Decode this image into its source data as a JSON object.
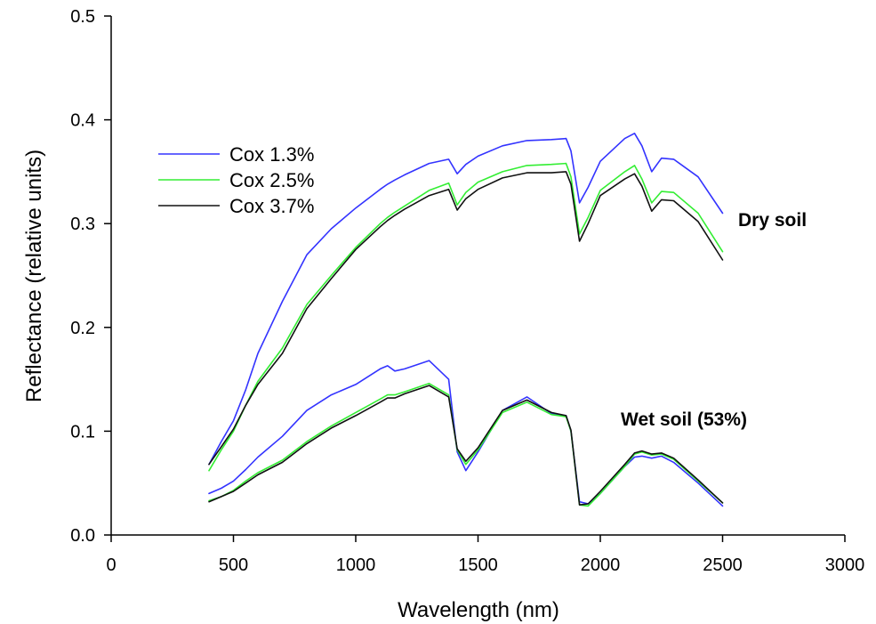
{
  "chart_data": {
    "type": "line",
    "title": "",
    "xlabel": "Wavelength (nm)",
    "ylabel": "Reflectance (relative units)",
    "xlim": [
      0,
      3000
    ],
    "ylim": [
      0,
      0.5
    ],
    "xticks": [
      0,
      500,
      1000,
      1500,
      2000,
      2500,
      3000
    ],
    "yticks": [
      0.0,
      0.1,
      0.2,
      0.3,
      0.4,
      0.5
    ],
    "xtick_labels": [
      "0",
      "500",
      "1000",
      "1500",
      "2000",
      "2500",
      "3000"
    ],
    "ytick_labels": [
      "0.0",
      "0.1",
      "0.2",
      "0.3",
      "0.4",
      "0.5"
    ],
    "grid": false,
    "legend_position": "upper-left",
    "legend": [
      "Cox 1.3%",
      "Cox 2.5%",
      "Cox 3.7%"
    ],
    "annotations": [
      "Dry soil",
      "Wet soil (53%)"
    ],
    "x": [
      400,
      450,
      500,
      550,
      600,
      700,
      800,
      900,
      1000,
      1100,
      1130,
      1160,
      1200,
      1300,
      1380,
      1415,
      1450,
      1500,
      1600,
      1700,
      1800,
      1860,
      1880,
      1915,
      1950,
      2000,
      2100,
      2140,
      2170,
      2210,
      2250,
      2300,
      2400,
      2500
    ],
    "series": [
      {
        "name": "Cox 1.3%",
        "color": "#3333ff",
        "condition": "Dry soil",
        "values": [
          0.068,
          0.09,
          0.11,
          0.14,
          0.175,
          0.225,
          0.27,
          0.295,
          0.315,
          0.333,
          0.338,
          0.342,
          0.347,
          0.358,
          0.362,
          0.348,
          0.357,
          0.365,
          0.375,
          0.38,
          0.381,
          0.382,
          0.37,
          0.32,
          0.335,
          0.36,
          0.382,
          0.387,
          0.375,
          0.35,
          0.363,
          0.362,
          0.345,
          0.31
        ]
      },
      {
        "name": "Cox 2.5%",
        "color": "#33ee33",
        "condition": "Dry soil",
        "values": [
          0.062,
          0.082,
          0.1,
          0.125,
          0.148,
          0.18,
          0.222,
          0.25,
          0.277,
          0.3,
          0.306,
          0.311,
          0.317,
          0.332,
          0.339,
          0.318,
          0.33,
          0.34,
          0.35,
          0.356,
          0.357,
          0.358,
          0.345,
          0.29,
          0.306,
          0.332,
          0.35,
          0.356,
          0.343,
          0.32,
          0.331,
          0.33,
          0.31,
          0.273
        ]
      },
      {
        "name": "Cox 3.7%",
        "color": "#111111",
        "condition": "Dry soil",
        "values": [
          0.068,
          0.085,
          0.102,
          0.125,
          0.145,
          0.175,
          0.218,
          0.247,
          0.275,
          0.297,
          0.303,
          0.308,
          0.314,
          0.327,
          0.333,
          0.313,
          0.324,
          0.333,
          0.344,
          0.349,
          0.349,
          0.35,
          0.338,
          0.283,
          0.3,
          0.327,
          0.343,
          0.348,
          0.336,
          0.312,
          0.323,
          0.322,
          0.302,
          0.265
        ]
      },
      {
        "name": "Cox 1.3%",
        "color": "#3333ff",
        "condition": "Wet soil (53%)",
        "values": [
          0.04,
          0.045,
          0.052,
          0.063,
          0.075,
          0.095,
          0.12,
          0.135,
          0.145,
          0.16,
          0.163,
          0.158,
          0.16,
          0.168,
          0.15,
          0.08,
          0.062,
          0.08,
          0.12,
          0.133,
          0.117,
          0.115,
          0.1,
          0.032,
          0.03,
          0.04,
          0.066,
          0.075,
          0.076,
          0.074,
          0.076,
          0.07,
          0.05,
          0.028
        ]
      },
      {
        "name": "Cox 2.5%",
        "color": "#33ee33",
        "condition": "Wet soil (53%)",
        "values": [
          0.033,
          0.037,
          0.043,
          0.052,
          0.06,
          0.072,
          0.09,
          0.105,
          0.118,
          0.131,
          0.135,
          0.135,
          0.138,
          0.146,
          0.135,
          0.082,
          0.068,
          0.082,
          0.118,
          0.128,
          0.116,
          0.114,
          0.1,
          0.029,
          0.028,
          0.04,
          0.066,
          0.078,
          0.08,
          0.077,
          0.078,
          0.073,
          0.052,
          0.031
        ]
      },
      {
        "name": "Cox 3.7%",
        "color": "#111111",
        "condition": "Wet soil (53%)",
        "values": [
          0.032,
          0.037,
          0.042,
          0.05,
          0.058,
          0.07,
          0.088,
          0.103,
          0.115,
          0.128,
          0.132,
          0.132,
          0.136,
          0.144,
          0.133,
          0.083,
          0.071,
          0.084,
          0.12,
          0.13,
          0.118,
          0.115,
          0.101,
          0.029,
          0.03,
          0.042,
          0.068,
          0.079,
          0.081,
          0.078,
          0.079,
          0.074,
          0.053,
          0.031
        ]
      }
    ]
  }
}
